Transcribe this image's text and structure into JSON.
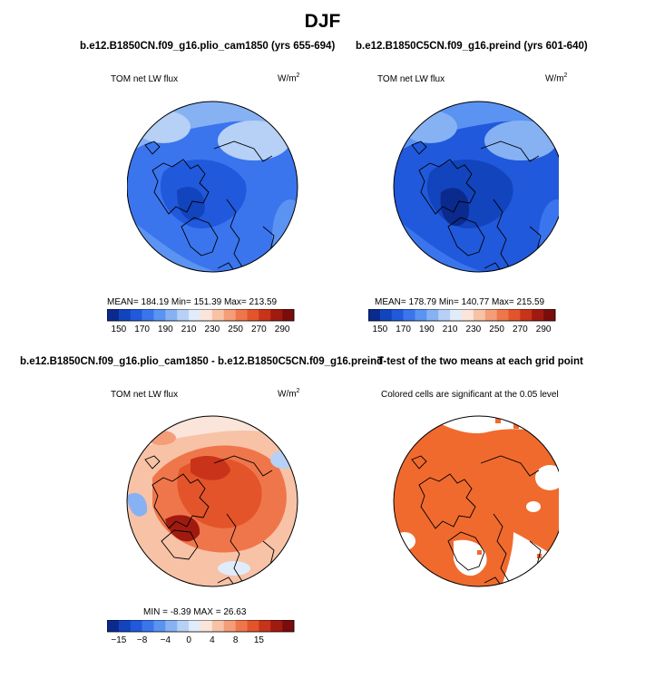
{
  "season_title": "DJF",
  "colors": {
    "abs_scale": [
      "#0a2a8e",
      "#1244bd",
      "#2159dc",
      "#3a75ee",
      "#5b93f2",
      "#86b2f4",
      "#b6d0f6",
      "#e1ecfb",
      "#fbe4d9",
      "#f7c2a6",
      "#f49d78",
      "#ef764b",
      "#e4542a",
      "#c8331a",
      "#a11a10",
      "#7a0c0c"
    ],
    "diff_scale": [
      "#0a2a8e",
      "#1244bd",
      "#2159dc",
      "#3a75ee",
      "#5b93f2",
      "#86b2f4",
      "#b6d0f6",
      "#e1ecfb",
      "#fbe4d9",
      "#f7c2a6",
      "#f49d78",
      "#ef764b",
      "#e4542a",
      "#c8331a",
      "#a11a10",
      "#7a0c0c"
    ],
    "significant": "#f06a2e"
  },
  "panels": {
    "top_left": {
      "case_title": "b.e12.B1850CN.f09_g16.plio_cam1850 (yrs 655-694)",
      "variable": "TOM net LW flux",
      "units_base": "W/m",
      "units_exp": "2",
      "stats": "MEAN= 184.19   Min= 151.39   Max= 213.59"
    },
    "top_right": {
      "case_title": "b.e12.B1850C5CN.f09_g16.preind (yrs 601-640)",
      "variable": "TOM net LW flux",
      "units_base": "W/m",
      "units_exp": "2",
      "stats": "MEAN= 178.79   Min= 140.77   Max= 215.59"
    },
    "bottom_left": {
      "case_title": "b.e12.B1850CN.f09_g16.plio_cam1850 - b.e12.B1850C5CN.f09_g16.preind",
      "variable": "TOM net LW flux",
      "units_base": "W/m",
      "units_exp": "2",
      "stats": "MIN =  -8.39  MAX =  26.63"
    },
    "bottom_right": {
      "case_title": "T-test of the two means at each grid point",
      "subtitle": "Colored cells are significant at the 0.05 level"
    }
  },
  "chart_data": [
    {
      "type": "heatmap",
      "panel": "top_left",
      "title": "b.e12.B1850CN.f09_g16.plio_cam1850 (yrs 655-694)",
      "field": "TOM net LW flux",
      "units": "W/m2",
      "mean": 184.19,
      "min": 151.39,
      "max": 213.59,
      "colorbar_levels": [
        150,
        160,
        170,
        180,
        190,
        200,
        210,
        220,
        230,
        240,
        250,
        260,
        270,
        280,
        290
      ],
      "colorbar_labels": [
        "150",
        "170",
        "190",
        "210",
        "230",
        "250",
        "270",
        "290"
      ]
    },
    {
      "type": "heatmap",
      "panel": "top_right",
      "title": "b.e12.B1850C5CN.f09_g16.preind (yrs 601-640)",
      "field": "TOM net LW flux",
      "units": "W/m2",
      "mean": 178.79,
      "min": 140.77,
      "max": 215.59,
      "colorbar_levels": [
        150,
        160,
        170,
        180,
        190,
        200,
        210,
        220,
        230,
        240,
        250,
        260,
        270,
        280,
        290
      ],
      "colorbar_labels": [
        "150",
        "170",
        "190",
        "210",
        "230",
        "250",
        "270",
        "290"
      ]
    },
    {
      "type": "heatmap",
      "panel": "bottom_left",
      "title": "b.e12.B1850CN.f09_g16.plio_cam1850 - b.e12.B1850C5CN.f09_g16.preind",
      "field": "TOM net LW flux",
      "units": "W/m2",
      "min": -8.39,
      "max": 26.63,
      "colorbar_levels": [
        -15,
        -12,
        -8,
        -6,
        -4,
        -2,
        0,
        2,
        4,
        6,
        8,
        12,
        15,
        20
      ],
      "colorbar_labels": [
        "-15",
        "-8",
        "-4",
        "0",
        "4",
        "8",
        "15"
      ]
    },
    {
      "type": "heatmap",
      "panel": "bottom_right",
      "title": "T-test of the two means at each grid point",
      "note": "Colored cells are significant at the 0.05 level",
      "significance_level": 0.05
    }
  ]
}
